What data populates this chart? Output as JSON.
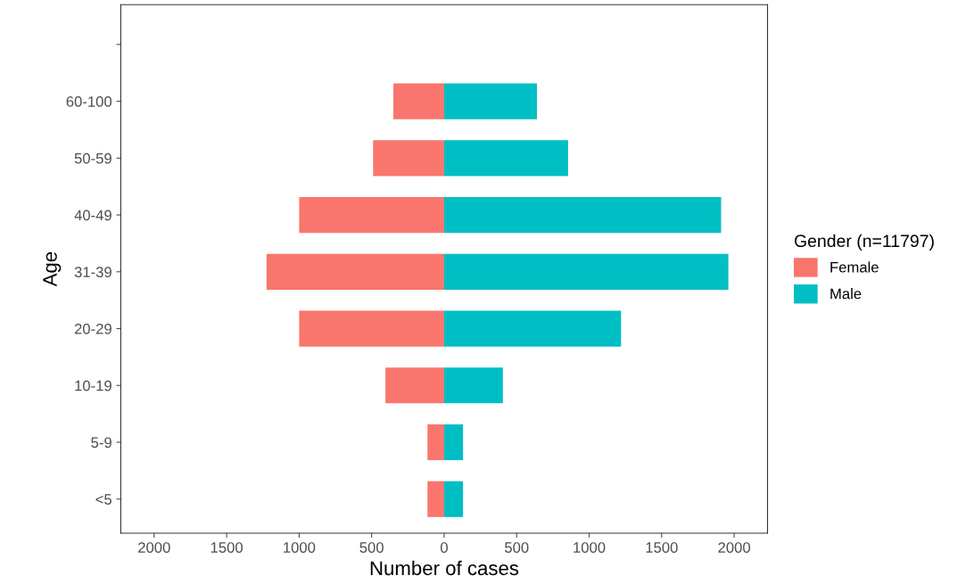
{
  "chart_data": {
    "type": "bar",
    "orientation": "horizontal",
    "stacked": true,
    "categories": [
      null,
      "60-100",
      "50-59",
      "40-49",
      "31-39",
      "20-29",
      "10-19",
      "5-9",
      "<5"
    ],
    "series": [
      {
        "name": "Female",
        "color": "#f8766d",
        "values": [
          null,
          -350,
          -490,
          -1000,
          -1225,
          -1000,
          -405,
          -115,
          -115
        ]
      },
      {
        "name": "Male",
        "color": "#00bfc4",
        "values": [
          null,
          640,
          855,
          1910,
          1960,
          1220,
          405,
          130,
          130
        ]
      }
    ],
    "xlim": [
      -2230,
      2230
    ],
    "xticks": [
      {
        "value": -2000,
        "label": "2000"
      },
      {
        "value": -1500,
        "label": "1500"
      },
      {
        "value": -1000,
        "label": "1000"
      },
      {
        "value": -500,
        "label": "500"
      },
      0,
      500,
      1000,
      1500,
      2000
    ],
    "xlabel": "Number of cases",
    "ylabel": "Age",
    "legend_title": "Gender (n=11797)",
    "legend": "right",
    "grid": false
  }
}
